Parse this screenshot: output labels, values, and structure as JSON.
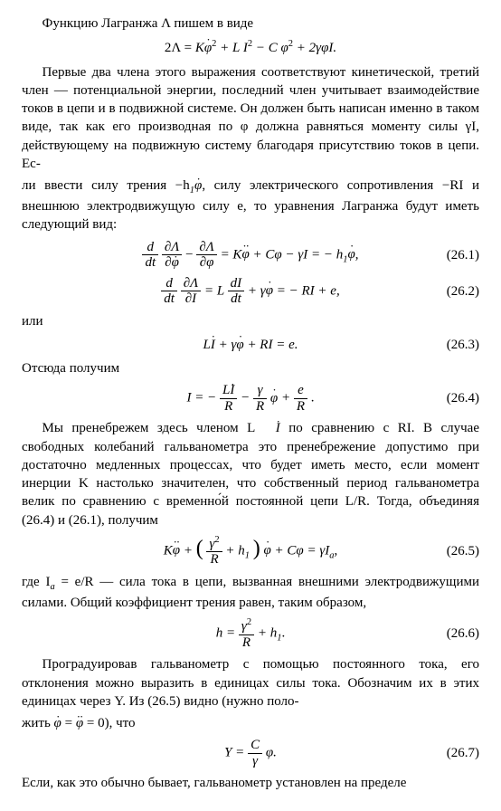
{
  "p1": "Функцию Лагранжа Λ пишем в виде",
  "eq0_left": "2Λ =",
  "eq0_t1": "K",
  "eq0_phi1": "φ",
  "eq0_t2": " + L I",
  "eq0_t3": " − C φ",
  "eq0_t4": " + 2γφI.",
  "p2": "Первые два члена этого выражения соответствуют кинетической, третий член — потенциальной энергии, последний член учитывает взаимодействие токов в цепи и в подвижной системе. Он должен быть написан именно в таком виде, так как его производная по φ должна равняться моменту силы γI, действующему на подвижную систему благодаря присутствию токов в цепи. Ес­-",
  "p3a": "ли ввести силу  трения −h",
  "p3sub": "1",
  "p3phi": "φ",
  "p3b": ", силу электрического  сопротивле­ния −RI и внешнюю электродвижущую силу e, то уравнения Лагранжа будут иметь следующий вид:",
  "eq1_lhs1_num": "d",
  "eq1_lhs1_den": "dt",
  "eq1_lhs2_num": "∂Λ",
  "eq1_lhs2_den_pre": "∂",
  "eq1_lhs3_num": "∂Λ",
  "eq1_lhs3_den": "∂φ",
  "eq1_rhs_a": " = K",
  "eq1_rhs_b": " + Cφ − γI = − h",
  "eq1_rhs_c": ",",
  "eq1_no": "(26.1)",
  "eq2_lhs1_num": "d",
  "eq2_lhs1_den": "dt",
  "eq2_lhs2_num": "∂Λ",
  "eq2_lhs2_den": "∂I",
  "eq2_rhs_a": " = L ",
  "eq2_rhs_num": "dI",
  "eq2_rhs_den": "dt",
  "eq2_rhs_b": " + γ",
  "eq2_rhs_c": " = − RI + e,",
  "eq2_no": "(26.2)",
  "p4": "или",
  "eq3_a": "L",
  "eq3_b": " + γ",
  "eq3_c": " + RI = e.",
  "eq3_no": "(26.3)",
  "p5": "Отсюда получим",
  "eq4_a": "I = − ",
  "eq4_f1_num_pre": "L",
  "eq4_f1_den": "R",
  "eq4_b": " − ",
  "eq4_f2_num": "γ",
  "eq4_f2_den": "R",
  "eq4_c": " ",
  "eq4_d": " + ",
  "eq4_f3_num": "e",
  "eq4_f3_den": "R",
  "eq4_e": " .",
  "eq4_no": "(26.4)",
  "p6a": "Мы пренебрежем здесь членом L",
  "p6I": "I",
  "p6b": " по сравнению с RI. В случае свободных колебаний гальванометра это пренебрежение допустимо при достаточно медленных процессах, что будет иметь место, если момент инерции K настолько значителен, что собственный период гальванометра велик по сравнению с временно́й постоянной цепи L/R. Тогда, объединяя (26.4) и (26.1), получим",
  "eq5_a": "K",
  "eq5_b": " + ",
  "eq5_fnum": "γ",
  "eq5_fden": "R",
  "eq5_c": " + h",
  "eq5_d": " + Cφ = γI",
  "eq5_e": ",",
  "eq5_no": "(26.5)",
  "p7a": "где I",
  "p7sub": "a",
  "p7b": " = e/R — сила тока в цепи, вызванная внешними электродвижущими силами. Общий коэффициент трения равен, таким образом,",
  "eq6_a": "h = ",
  "eq6_num": "γ",
  "eq6_den": "R",
  "eq6_b": " + h",
  "eq6_c": ".",
  "eq6_no": "(26.6)",
  "p8a": "Проградуировав гальванометр с помощью постоянного тока, его отклонения можно выразить в единицах силы тока. Обозначим их в этих единицах через Y. Из (26.5) видно (нужно поло­-",
  "p8b": "жить ",
  "p8c": " = ",
  "p8d": " = 0), что",
  "eq7_a": "Y = ",
  "eq7_num": "C",
  "eq7_den": "γ",
  "eq7_b": " φ.",
  "eq7_no": "(26.7)",
  "p9": "Если, как это обычно бывает, гальванометр установлен на пределе"
}
